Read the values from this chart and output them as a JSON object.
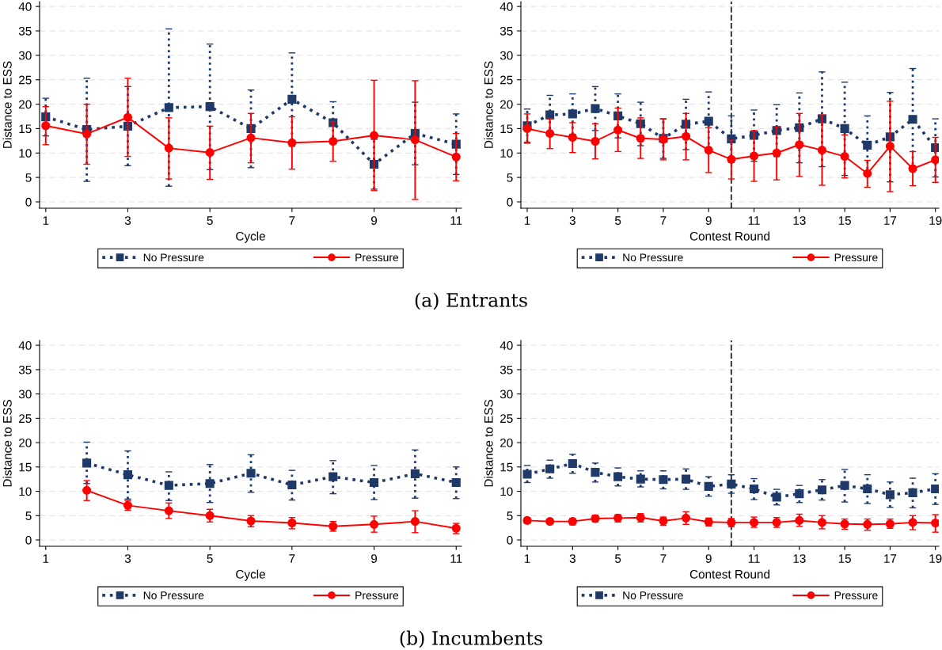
{
  "chart_data": [
    {
      "type": "line",
      "xlabel": "Cycle",
      "ylabel": "Distance to ESS",
      "x": [
        1,
        2,
        3,
        4,
        5,
        6,
        7,
        8,
        9,
        10,
        11
      ],
      "xlim": [
        0.85,
        11.13
      ],
      "xticks": [
        1,
        3,
        5,
        7,
        9,
        11
      ],
      "ylim": [
        -1.3,
        41
      ],
      "yticks": [
        0,
        5,
        10,
        15,
        20,
        25,
        30,
        35,
        40
      ],
      "grid": "y",
      "legend": "bottom",
      "annotations": [
        "(a) Entrants"
      ],
      "series": [
        {
          "name": "No Pressure",
          "color": "#1f3a68",
          "marker": "square",
          "line_style": "dotted",
          "values": [
            17.4,
            14.8,
            15.5,
            19.3,
            19.5,
            15.0,
            21.0,
            16.2,
            7.7,
            14.0,
            11.8
          ],
          "errors": [
            [
              13.5,
              21.2
            ],
            [
              4.2,
              25.3
            ],
            [
              7.4,
              23.6
            ],
            [
              3.2,
              35.4
            ],
            [
              6.6,
              32.3
            ],
            [
              7.0,
              22.9
            ],
            [
              11.4,
              30.5
            ],
            [
              12.0,
              20.5
            ],
            [
              2.6,
              12.8
            ],
            [
              7.6,
              20.4
            ],
            [
              5.6,
              18.0
            ]
          ]
        },
        {
          "name": "Pressure",
          "color": "#ff0000",
          "marker": "circle",
          "line_style": "solid",
          "values": [
            15.6,
            13.9,
            17.3,
            11.0,
            10.1,
            13.1,
            12.1,
            12.4,
            13.6,
            12.7,
            9.2
          ],
          "errors": [
            [
              11.7,
              19.5
            ],
            [
              7.7,
              20.0
            ],
            [
              9.3,
              25.3
            ],
            [
              4.7,
              17.2
            ],
            [
              4.6,
              15.5
            ],
            [
              8.0,
              18.1
            ],
            [
              6.7,
              17.4
            ],
            [
              8.3,
              16.4
            ],
            [
              2.3,
              24.9
            ],
            [
              0.5,
              24.8
            ],
            [
              4.3,
              14.0
            ]
          ]
        }
      ]
    },
    {
      "type": "line",
      "xlabel": "Contest Round",
      "ylabel": "Distance to ESS",
      "x": [
        1,
        2,
        3,
        4,
        5,
        6,
        7,
        8,
        9,
        10,
        11,
        12,
        13,
        14,
        15,
        16,
        17,
        18,
        19
      ],
      "xlim": [
        0.72,
        19.15
      ],
      "xticks": [
        1,
        3,
        5,
        7,
        9,
        11,
        13,
        15,
        17,
        19
      ],
      "ylim": [
        -1.3,
        41
      ],
      "yticks": [
        0,
        5,
        10,
        15,
        20,
        25,
        30,
        35,
        40
      ],
      "grid": "y",
      "legend": "bottom",
      "ref_lines": [
        {
          "axis": "x",
          "value": 10,
          "color": "#333333",
          "line_style": "dashed"
        }
      ],
      "series": [
        {
          "name": "No Pressure",
          "color": "#1f3a68",
          "marker": "square",
          "line_style": "dotted",
          "values": [
            15.6,
            17.8,
            18.0,
            19.1,
            17.6,
            16.0,
            13.0,
            15.9,
            16.5,
            12.9,
            13.6,
            14.6,
            15.2,
            17.0,
            15.0,
            11.6,
            13.3,
            16.9,
            11.1
          ],
          "errors": [
            [
              12.2,
              19.0
            ],
            [
              13.7,
              21.8
            ],
            [
              13.8,
              22.1
            ],
            [
              14.6,
              23.6
            ],
            [
              13.1,
              22.1
            ],
            [
              11.5,
              20.4
            ],
            [
              8.9,
              17.0
            ],
            [
              10.7,
              21.0
            ],
            [
              10.5,
              22.5
            ],
            [
              8.1,
              17.6
            ],
            [
              8.3,
              18.8
            ],
            [
              9.3,
              19.9
            ],
            [
              8.0,
              22.3
            ],
            [
              7.2,
              26.6
            ],
            [
              5.4,
              24.5
            ],
            [
              5.5,
              17.6
            ],
            [
              4.1,
              22.4
            ],
            [
              6.5,
              27.3
            ],
            [
              5.1,
              17.0
            ]
          ]
        },
        {
          "name": "Pressure",
          "color": "#ff0000",
          "marker": "circle",
          "line_style": "solid",
          "values": [
            15.0,
            14.0,
            13.2,
            12.4,
            14.7,
            13.0,
            12.8,
            13.4,
            10.6,
            8.7,
            9.4,
            10.0,
            11.7,
            10.6,
            9.3,
            5.8,
            11.4,
            6.8,
            8.6
          ],
          "errors": [
            [
              12.0,
              18.0
            ],
            [
              10.9,
              17.0
            ],
            [
              10.1,
              16.2
            ],
            [
              8.8,
              16.0
            ],
            [
              10.3,
              19.2
            ],
            [
              8.9,
              17.2
            ],
            [
              8.6,
              17.0
            ],
            [
              8.6,
              18.1
            ],
            [
              6.0,
              15.2
            ],
            [
              4.7,
              12.6
            ],
            [
              4.2,
              14.6
            ],
            [
              4.5,
              15.4
            ],
            [
              5.2,
              18.1
            ],
            [
              3.4,
              17.8
            ],
            [
              4.9,
              13.7
            ],
            [
              3.0,
              8.5
            ],
            [
              2.1,
              20.6
            ],
            [
              3.3,
              10.3
            ],
            [
              4.0,
              13.2
            ]
          ]
        }
      ]
    },
    {
      "type": "line",
      "xlabel": "Cycle",
      "ylabel": "Distance to ESS",
      "x": [
        2,
        3,
        4,
        5,
        6,
        7,
        8,
        9,
        10,
        11
      ],
      "xlim": [
        0.85,
        11.13
      ],
      "xticks": [
        1,
        3,
        5,
        7,
        9,
        11
      ],
      "ylim": [
        -1.3,
        41
      ],
      "yticks": [
        0,
        5,
        10,
        15,
        20,
        25,
        30,
        35,
        40
      ],
      "grid": "y",
      "legend": "bottom",
      "annotations": [
        "(b) Incumbents"
      ],
      "series": [
        {
          "name": "No Pressure",
          "color": "#1f3a68",
          "marker": "square",
          "line_style": "dotted",
          "values": [
            15.8,
            13.4,
            11.2,
            11.6,
            13.7,
            11.3,
            13.0,
            11.8,
            13.6,
            11.8
          ],
          "errors": [
            [
              11.6,
              20.1
            ],
            [
              8.4,
              18.3
            ],
            [
              8.1,
              14.0
            ],
            [
              7.7,
              15.5
            ],
            [
              9.8,
              17.5
            ],
            [
              8.2,
              14.3
            ],
            [
              9.5,
              16.3
            ],
            [
              8.3,
              15.3
            ],
            [
              8.6,
              18.5
            ],
            [
              8.5,
              15.0
            ]
          ]
        },
        {
          "name": "Pressure",
          "color": "#ff0000",
          "marker": "circle",
          "line_style": "solid",
          "values": [
            10.2,
            7.1,
            6.0,
            5.0,
            3.9,
            3.5,
            2.8,
            3.2,
            3.8,
            2.4
          ],
          "errors": [
            [
              8.1,
              12.2
            ],
            [
              6.1,
              8.1
            ],
            [
              4.4,
              7.6
            ],
            [
              3.7,
              6.3
            ],
            [
              2.7,
              5.0
            ],
            [
              2.3,
              4.6
            ],
            [
              1.8,
              3.8
            ],
            [
              1.6,
              4.9
            ],
            [
              1.5,
              6.0
            ],
            [
              1.3,
              3.4
            ]
          ]
        }
      ]
    },
    {
      "type": "line",
      "xlabel": "Contest Round",
      "ylabel": "Distance to ESS",
      "x": [
        1,
        2,
        3,
        4,
        5,
        6,
        7,
        8,
        9,
        10,
        11,
        12,
        13,
        14,
        15,
        16,
        17,
        18,
        19
      ],
      "xlim": [
        0.72,
        19.15
      ],
      "xticks": [
        1,
        3,
        5,
        7,
        9,
        11,
        13,
        15,
        17,
        19
      ],
      "ylim": [
        -1.3,
        41
      ],
      "yticks": [
        0,
        5,
        10,
        15,
        20,
        25,
        30,
        35,
        40
      ],
      "grid": "y",
      "legend": "bottom",
      "ref_lines": [
        {
          "axis": "x",
          "value": 10,
          "color": "#333333",
          "line_style": "dashed"
        }
      ],
      "series": [
        {
          "name": "No Pressure",
          "color": "#1f3a68",
          "marker": "square",
          "line_style": "dotted",
          "values": [
            13.5,
            14.6,
            15.7,
            13.9,
            13.0,
            12.5,
            12.4,
            12.5,
            11.0,
            11.5,
            10.5,
            8.8,
            9.5,
            10.3,
            11.2,
            10.5,
            9.3,
            9.7,
            10.5
          ],
          "errors": [
            [
              11.8,
              15.3
            ],
            [
              12.7,
              16.4
            ],
            [
              13.7,
              17.6
            ],
            [
              11.9,
              15.8
            ],
            [
              11.1,
              14.8
            ],
            [
              10.9,
              14.2
            ],
            [
              10.5,
              14.2
            ],
            [
              10.4,
              14.6
            ],
            [
              9.0,
              13.0
            ],
            [
              9.6,
              13.4
            ],
            [
              8.3,
              12.6
            ],
            [
              7.2,
              10.4
            ],
            [
              7.7,
              11.2
            ],
            [
              8.2,
              12.4
            ],
            [
              7.8,
              14.5
            ],
            [
              7.5,
              13.4
            ],
            [
              6.7,
              11.9
            ],
            [
              6.6,
              12.7
            ],
            [
              7.3,
              13.6
            ]
          ]
        },
        {
          "name": "Pressure",
          "color": "#ff0000",
          "marker": "circle",
          "line_style": "solid",
          "values": [
            4.0,
            3.8,
            3.8,
            4.4,
            4.5,
            4.6,
            3.9,
            4.5,
            3.7,
            3.6,
            3.6,
            3.6,
            4.0,
            3.6,
            3.3,
            3.2,
            3.3,
            3.6,
            3.5
          ],
          "errors": [
            [
              3.4,
              4.6
            ],
            [
              3.3,
              4.3
            ],
            [
              3.1,
              4.4
            ],
            [
              3.7,
              5.1
            ],
            [
              3.7,
              5.2
            ],
            [
              3.7,
              5.4
            ],
            [
              3.0,
              4.7
            ],
            [
              3.2,
              5.8
            ],
            [
              2.9,
              4.5
            ],
            [
              2.7,
              4.4
            ],
            [
              2.6,
              4.7
            ],
            [
              2.6,
              4.6
            ],
            [
              2.8,
              5.3
            ],
            [
              2.3,
              5.0
            ],
            [
              2.2,
              4.3
            ],
            [
              2.0,
              4.3
            ],
            [
              2.4,
              4.3
            ],
            [
              2.1,
              5.0
            ],
            [
              1.6,
              5.2
            ]
          ]
        }
      ]
    }
  ]
}
